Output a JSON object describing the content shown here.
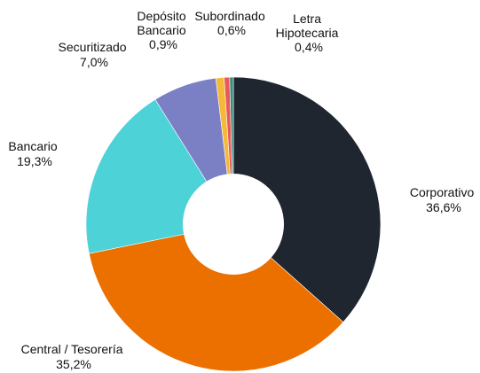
{
  "chart_data": {
    "type": "pie",
    "variant": "donut",
    "title": "",
    "slices": [
      {
        "label": "Corporativo",
        "value_text": "36,6%",
        "value": 36.6,
        "color": "#1f2630"
      },
      {
        "label": "Central / Tesorería",
        "value_text": "35,2%",
        "value": 35.2,
        "color": "#ec7000"
      },
      {
        "label": "Bancario",
        "value_text": "19,3%",
        "value": 19.3,
        "color": "#4dd2d8"
      },
      {
        "label": "Securitizado",
        "value_text": "7,0%",
        "value": 7.0,
        "color": "#7b7fc4"
      },
      {
        "label": "Depósito Bancario",
        "value_text": "0,9%",
        "value": 0.9,
        "color": "#f5b93a"
      },
      {
        "label": "Subordinado",
        "value_text": "0,6%",
        "value": 0.6,
        "color": "#e85a5a"
      },
      {
        "label": "Letra Hipotecaria",
        "value_text": "0,4%",
        "value": 0.4,
        "color": "#3d8b7d"
      }
    ]
  }
}
